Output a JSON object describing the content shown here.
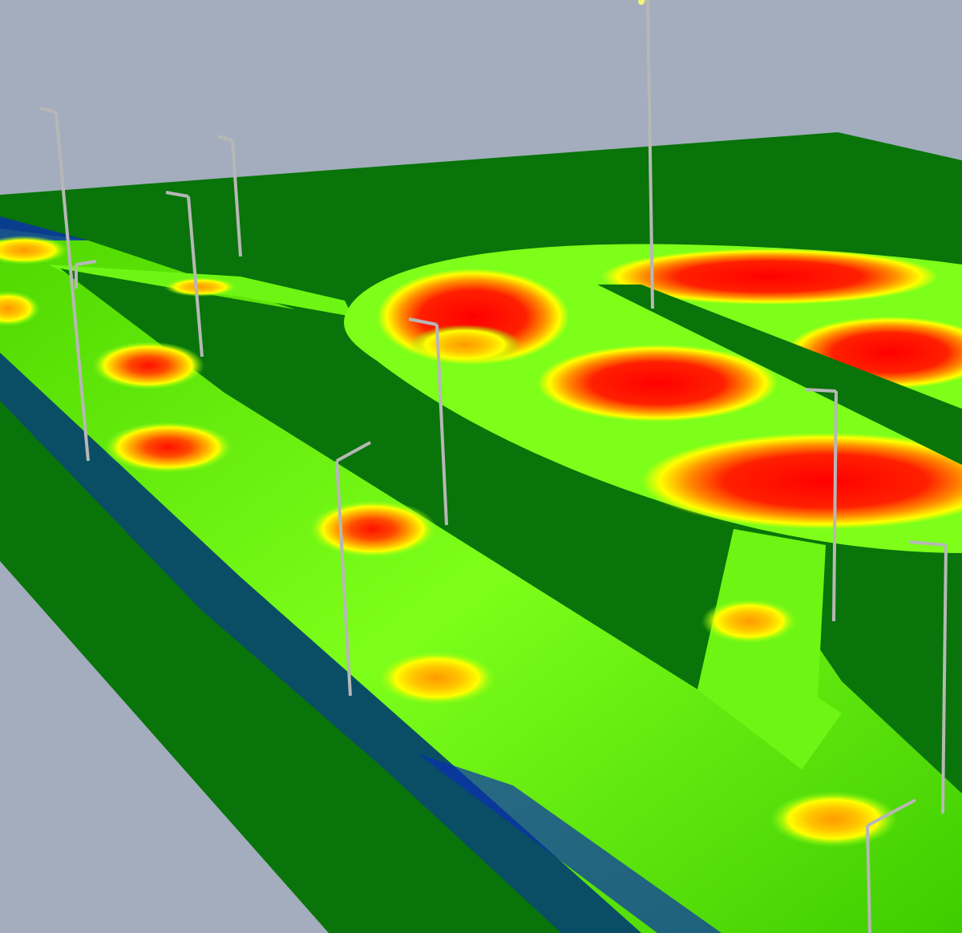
{
  "scene": {
    "kind": "3d-lighting-illuminance-render",
    "colors": {
      "sky": "#a3adbd",
      "ground": "#097409",
      "low": "#0a2fb0",
      "mid_low": "#27e000",
      "mid": "#7dff1a",
      "mid_high": "#ffff00",
      "high": "#ff8a00",
      "peak": "#ff0000",
      "pole": "#b7b7b7",
      "lamp_tip": "#f3f37a"
    },
    "surfaces": [
      "main-road",
      "side-path",
      "parking-area",
      "connector-road",
      "service-lane"
    ],
    "light_pole_count": 10
  }
}
